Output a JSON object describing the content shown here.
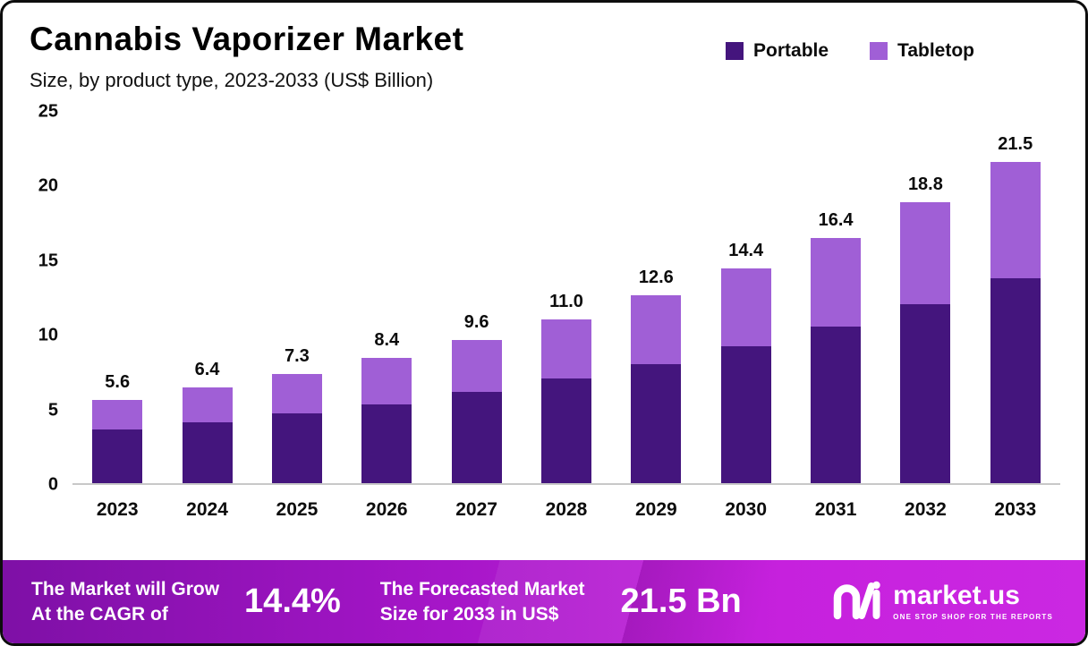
{
  "chart_data": {
    "type": "bar",
    "stacked": true,
    "title": "Cannabis Vaporizer Market",
    "subtitle": "Size, by product type, 2023-2033 (US$ Billion)",
    "categories": [
      "2023",
      "2024",
      "2025",
      "2026",
      "2027",
      "2028",
      "2029",
      "2030",
      "2031",
      "2032",
      "2033"
    ],
    "series": [
      {
        "name": "Portable",
        "color": "#44157d",
        "values": [
          3.6,
          4.1,
          4.7,
          5.3,
          6.1,
          7.0,
          8.0,
          9.2,
          10.5,
          12.0,
          13.7
        ]
      },
      {
        "name": "Tabletop",
        "color": "#a05fd6",
        "values": [
          2.0,
          2.3,
          2.6,
          3.1,
          3.5,
          4.0,
          4.6,
          5.2,
          5.9,
          6.8,
          7.8
        ]
      }
    ],
    "totals": [
      5.6,
      6.4,
      7.3,
      8.4,
      9.6,
      11.0,
      12.6,
      14.4,
      16.4,
      18.8,
      21.5
    ],
    "xlabel": "",
    "ylabel": "",
    "ylim": [
      0,
      25
    ],
    "yticks": [
      0,
      5,
      10,
      15,
      20,
      25
    ],
    "grid": false,
    "legend_position": "top-right",
    "baseline_color": "#c8c8c8"
  },
  "footer": {
    "cagr_line1": "The Market will Grow",
    "cagr_line2": "At the CAGR of",
    "cagr_value": "14.4%",
    "forecast_line1": "The Forecasted Market",
    "forecast_line2": "Size for 2033 in US$",
    "forecast_value": "21.5 Bn",
    "gradient": [
      "#7e10a6",
      "#cb28e2"
    ],
    "brand": {
      "name": "market.us",
      "tagline": "ONE STOP SHOP FOR THE REPORTS"
    }
  }
}
